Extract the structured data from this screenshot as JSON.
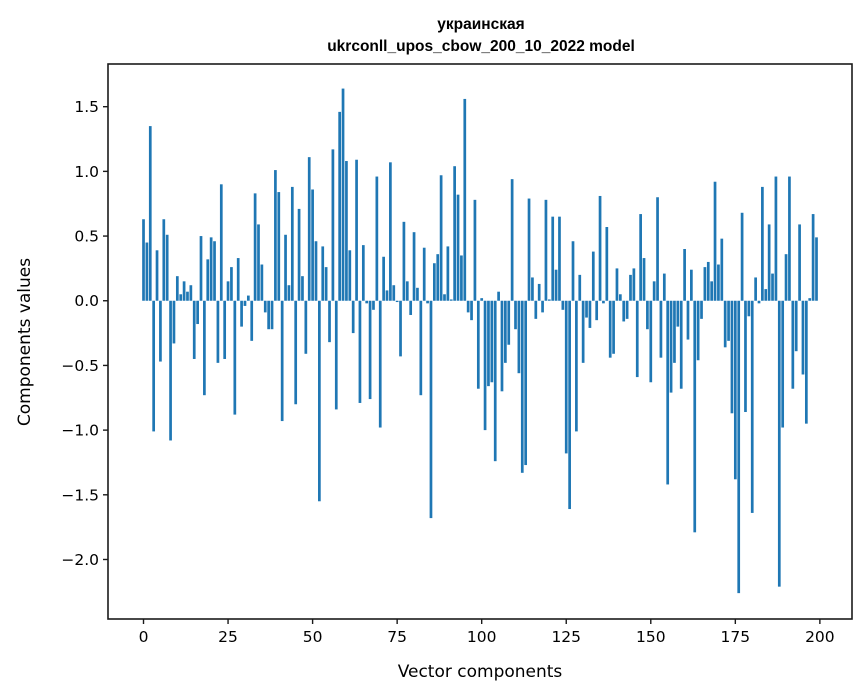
{
  "chart_data": {
    "type": "bar",
    "title_lines": [
      "украинская",
      "ukrconll_upos_cbow_200_10_2022 model"
    ],
    "xlabel": "Vector components",
    "ylabel": "Components values",
    "xlim": [
      -10.5,
      209.5
    ],
    "ylim": [
      -2.46,
      1.83
    ],
    "xticks": [
      0,
      25,
      50,
      75,
      100,
      125,
      150,
      175,
      200
    ],
    "xtick_labels": [
      "0",
      "25",
      "50",
      "75",
      "100",
      "125",
      "150",
      "175",
      "200"
    ],
    "yticks": [
      1.5,
      1.0,
      0.5,
      0.0,
      -0.5,
      -1.0,
      -1.5,
      -2.0
    ],
    "ytick_labels": [
      "1.5",
      "1.0",
      "0.5",
      "0.0",
      "−0.5",
      "−1.0",
      "−1.5",
      "−2.0"
    ],
    "grid": false,
    "bar_color": "#1f77b4",
    "values": [
      0.63,
      0.45,
      1.35,
      -1.01,
      0.39,
      -0.47,
      0.63,
      0.51,
      -1.08,
      -0.33,
      0.19,
      0.05,
      0.15,
      0.07,
      0.12,
      -0.45,
      -0.18,
      0.5,
      -0.73,
      0.32,
      0.49,
      0.46,
      -0.48,
      0.9,
      -0.45,
      0.15,
      0.26,
      -0.88,
      0.33,
      -0.2,
      -0.04,
      0.04,
      -0.31,
      0.83,
      0.59,
      0.28,
      -0.09,
      -0.22,
      -0.22,
      1.01,
      0.84,
      -0.93,
      0.51,
      0.12,
      0.88,
      -0.8,
      0.71,
      0.19,
      -0.41,
      1.11,
      0.86,
      0.46,
      -1.55,
      0.42,
      0.26,
      -0.32,
      1.17,
      -0.84,
      1.46,
      1.64,
      1.08,
      0.39,
      -0.25,
      1.09,
      -0.79,
      0.43,
      -0.02,
      -0.76,
      -0.07,
      0.96,
      -0.98,
      0.34,
      0.08,
      1.07,
      0.12,
      -0.01,
      -0.43,
      0.61,
      0.15,
      -0.11,
      0.53,
      0.1,
      -0.73,
      0.41,
      -0.02,
      -1.68,
      0.29,
      0.36,
      0.97,
      0.05,
      0.42,
      0.01,
      1.04,
      0.82,
      0.35,
      1.56,
      -0.09,
      -0.15,
      0.78,
      -0.68,
      0.02,
      -1.0,
      -0.66,
      -0.63,
      -1.24,
      0.07,
      -0.7,
      -0.48,
      -0.34,
      0.94,
      -0.22,
      -0.56,
      -1.33,
      -1.27,
      0.79,
      0.18,
      -0.14,
      0.13,
      -0.09,
      0.78,
      0.01,
      0.65,
      0.24,
      0.65,
      -0.07,
      -1.18,
      -1.61,
      0.46,
      -1.01,
      0.2,
      -0.48,
      -0.13,
      -0.21,
      0.38,
      -0.15,
      0.81,
      -0.02,
      0.57,
      -0.44,
      -0.41,
      0.25,
      0.05,
      -0.16,
      -0.14,
      0.2,
      0.25,
      -0.59,
      0.67,
      0.33,
      -0.22,
      -0.63,
      0.15,
      0.8,
      -0.44,
      0.21,
      -1.42,
      -0.71,
      -0.48,
      -0.2,
      -0.68,
      0.4,
      -0.3,
      0.24,
      -1.79,
      -0.46,
      -0.14,
      0.26,
      0.3,
      0.15,
      0.92,
      0.28,
      0.48,
      -0.36,
      -0.31,
      -0.87,
      -1.38,
      -2.26,
      0.68,
      -0.86,
      -0.12,
      -1.64,
      0.18,
      -0.02,
      0.88,
      0.09,
      0.59,
      0.21,
      0.96,
      -2.21,
      -0.98,
      0.36,
      0.96,
      -0.68,
      -0.39,
      0.59,
      -0.57,
      -0.95,
      0.02,
      0.67,
      0.49
    ]
  }
}
